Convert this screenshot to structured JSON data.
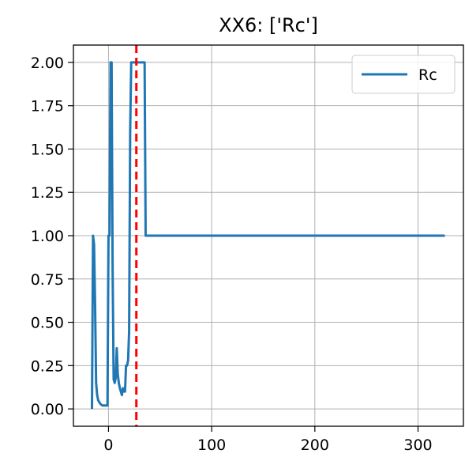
{
  "chart_data": {
    "type": "line",
    "title": "XX6: ['Rc']",
    "xlabel": "",
    "ylabel": "",
    "xlim": [
      -34,
      344
    ],
    "ylim": [
      -0.1,
      2.1
    ],
    "grid": true,
    "legend_position": "top-right",
    "x_ticks": [
      {
        "value": 0,
        "label": "0"
      },
      {
        "value": 100,
        "label": "100"
      },
      {
        "value": 200,
        "label": "200"
      },
      {
        "value": 300,
        "label": "300"
      }
    ],
    "y_ticks": [
      {
        "value": 0.0,
        "label": "0.00"
      },
      {
        "value": 0.25,
        "label": "0.25"
      },
      {
        "value": 0.5,
        "label": "0.50"
      },
      {
        "value": 0.75,
        "label": "0.75"
      },
      {
        "value": 1.0,
        "label": "1.00"
      },
      {
        "value": 1.25,
        "label": "1.25"
      },
      {
        "value": 1.5,
        "label": "1.50"
      },
      {
        "value": 1.75,
        "label": "1.75"
      },
      {
        "value": 2.0,
        "label": "2.00"
      }
    ],
    "series": [
      {
        "name": "Rc",
        "color": "#1f77b4",
        "x": [
          -16,
          -15,
          -14,
          -13,
          -12,
          -11,
          -10,
          -9,
          -8,
          -7,
          -6,
          -5,
          -4,
          -3,
          -2,
          -1,
          0,
          1,
          2,
          3,
          4,
          5,
          6,
          7,
          8,
          9,
          10,
          11,
          12,
          13,
          14,
          15,
          16,
          17,
          18,
          19,
          20,
          21,
          22,
          23,
          24,
          25,
          26,
          27,
          28,
          29,
          30,
          31,
          32,
          33,
          34,
          35,
          36,
          37,
          38,
          40,
          50,
          100,
          200,
          300,
          326
        ],
        "y": [
          0.0,
          1.0,
          0.95,
          0.6,
          0.15,
          0.08,
          0.05,
          0.04,
          0.03,
          0.025,
          0.02,
          0.02,
          0.02,
          0.02,
          0.02,
          0.02,
          1.0,
          1.0,
          2.0,
          2.0,
          0.8,
          0.17,
          0.15,
          0.18,
          0.35,
          0.2,
          0.15,
          0.12,
          0.1,
          0.08,
          0.12,
          0.1,
          0.1,
          0.25,
          0.25,
          0.28,
          0.45,
          1.6,
          2.0,
          2.0,
          2.0,
          2.0,
          2.0,
          2.0,
          2.0,
          2.0,
          2.0,
          2.0,
          2.0,
          2.0,
          2.0,
          2.0,
          1.0,
          1.0,
          1.0,
          1.0,
          1.0,
          1.0,
          1.0,
          1.0,
          1.0
        ]
      }
    ],
    "vline": {
      "x": 27,
      "color": "#ff0000",
      "style": "dashed"
    }
  }
}
